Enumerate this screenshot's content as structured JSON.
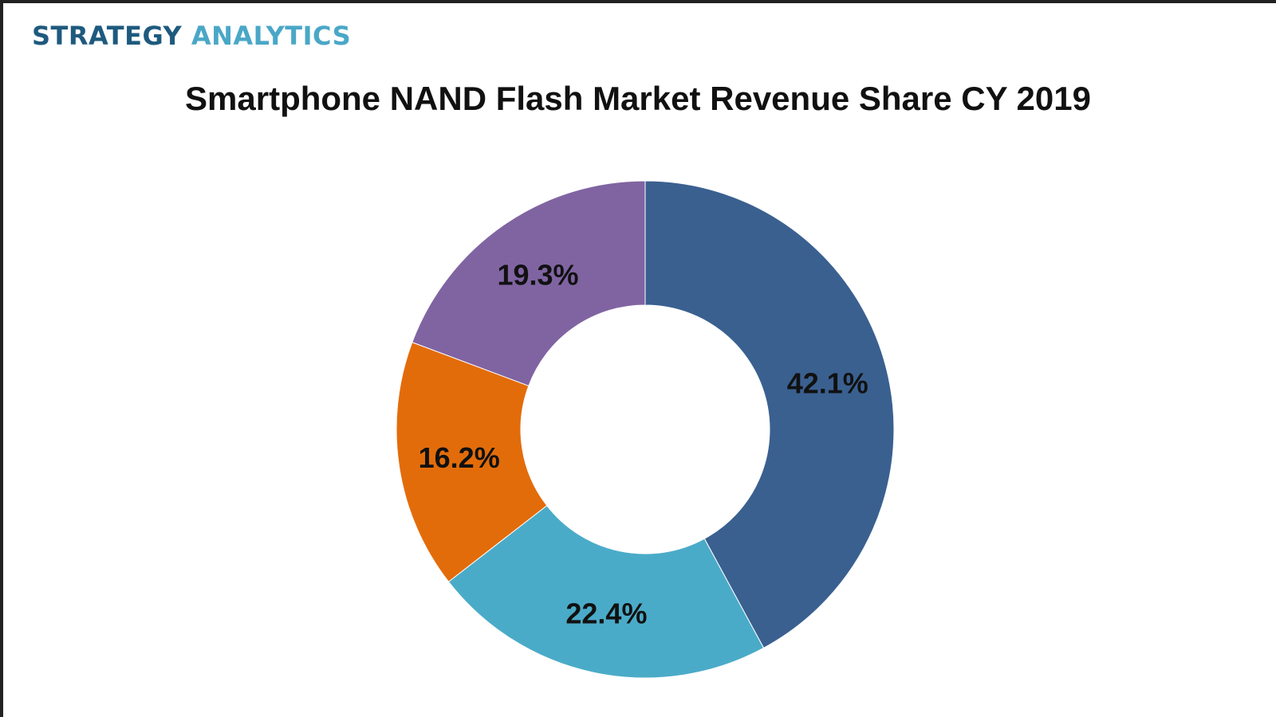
{
  "brand": {
    "part1": "STRATEGY",
    "part2": "ANALYTICS"
  },
  "colors": {
    "brand_dark": "#1e5a7e",
    "brand_light": "#4aa7c7"
  },
  "chart_data": {
    "type": "pie",
    "variant": "donut",
    "title": "Smartphone NAND Flash Market Revenue Share CY 2019",
    "slices": [
      {
        "value": 42.1,
        "label": "42.1%",
        "color": "#3a6090"
      },
      {
        "value": 22.4,
        "label": "22.4%",
        "color": "#4aabc8"
      },
      {
        "value": 16.2,
        "label": "16.2%",
        "color": "#e36c0a"
      },
      {
        "value": 19.3,
        "label": "19.3%",
        "color": "#8064a2"
      }
    ],
    "start_angle": "12 o'clock",
    "direction": "clockwise",
    "legend": "bottom (cut off)"
  }
}
